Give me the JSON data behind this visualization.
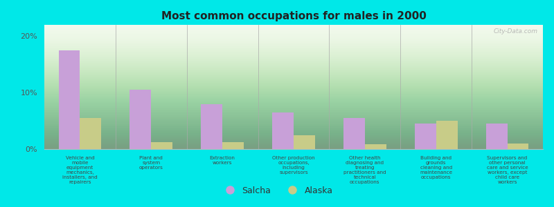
{
  "title": "Most common occupations for males in 2000",
  "categories": [
    "Vehicle and\nmobile\nequipment\nmechanics,\ninstallers, and\nrepairers",
    "Plant and\nsystem\noperators",
    "Extraction\nworkers",
    "Other production\noccupations,\nincluding\nsupervisors",
    "Other health\ndiagnosing and\ntreating\npractitioners and\ntechnical\noccupations",
    "Building and\ngrounds\ncleaning and\nmaintenance\noccupations",
    "Supervisors and\nother personal\ncare and service\nworkers, except\nchild care\nworkers"
  ],
  "salcha_values": [
    17.5,
    10.5,
    8.0,
    6.5,
    5.5,
    4.5,
    4.5
  ],
  "alaska_values": [
    5.5,
    1.2,
    1.2,
    2.5,
    0.8,
    5.0,
    1.0
  ],
  "salcha_color": "#c8a0d8",
  "alaska_color": "#c8cc88",
  "background_outer": "#00e8e8",
  "background_inner_top": "#c8e8c0",
  "background_inner_bottom": "#f0f8e8",
  "ylim": [
    0,
    22
  ],
  "yticks": [
    0,
    10,
    20
  ],
  "ytick_labels": [
    "0%",
    "10%",
    "20%"
  ],
  "bar_width": 0.3,
  "legend_labels": [
    "Salcha",
    "Alaska"
  ],
  "watermark": "City-Data.com"
}
